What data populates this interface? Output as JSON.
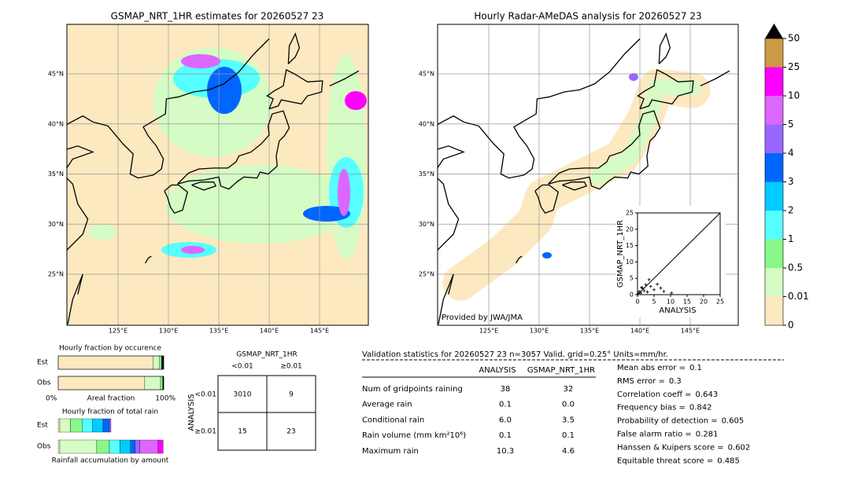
{
  "left_map": {
    "title": "GSMAP_NRT_1HR estimates for 20260527 23",
    "lat_labels": [
      "45°N",
      "40°N",
      "35°N",
      "30°N",
      "25°N"
    ],
    "lon_labels": [
      "125°E",
      "130°E",
      "135°E",
      "140°E",
      "145°E"
    ]
  },
  "right_map": {
    "title": "Hourly Radar-AMeDAS analysis for 20260527 23",
    "lat_labels": [
      "45°N",
      "40°N",
      "35°N",
      "30°N",
      "25°N"
    ],
    "lon_labels": [
      "125°E",
      "130°E",
      "135°E",
      "140°E",
      "145°E"
    ],
    "credit": "Provided by JWA/JMA"
  },
  "scatter": {
    "x_label": "ANALYSIS",
    "y_label": "GSMAP_NRT_1HR",
    "xlim": [
      0,
      25
    ],
    "ylim": [
      0,
      25
    ],
    "xticks": [
      0,
      5,
      10,
      15,
      20,
      25
    ],
    "yticks": [
      0,
      5,
      10,
      15,
      20,
      25
    ],
    "x": [
      0.2,
      0.5,
      1,
      1.5,
      2,
      2.5,
      3,
      4,
      5,
      6,
      7,
      8,
      10.3,
      3.5,
      1.2
    ],
    "y": [
      0.3,
      1,
      0.5,
      2,
      1.2,
      3,
      0.8,
      2.5,
      1.5,
      3.2,
      2,
      1,
      0.5,
      4.6,
      2.2
    ]
  },
  "colorbar": {
    "ticks": [
      0,
      0.01,
      0.5,
      1,
      2,
      3,
      4,
      5,
      10,
      25,
      50
    ],
    "colors": [
      "#fde9c0",
      "#d4fcc4",
      "#88f888",
      "#55ffff",
      "#00ccff",
      "#0066ff",
      "#9966ff",
      "#dd66ff",
      "#ff00ff",
      "#cc9944"
    ],
    "extend_color": "#000000"
  },
  "occurrence": {
    "title": "Hourly fraction by occurence",
    "rows": [
      "Est",
      "Obs"
    ],
    "x_labels": [
      "0%",
      "Areal fraction",
      "100%"
    ],
    "colors": [
      "#fde9c0",
      "#d4fcc4",
      "#88f888",
      "#000000"
    ],
    "segments": [
      [
        0.9,
        0.06,
        0.02,
        0.02
      ],
      [
        0.82,
        0.15,
        0.02,
        0.01
      ]
    ]
  },
  "total": {
    "title": "Hourly fraction of total rain",
    "rows": [
      "Est",
      "Obs"
    ],
    "footer": "Rainfall accumulation by amount",
    "colors": [
      "#fde9c0",
      "#d4fcc4",
      "#88f888",
      "#55ffff",
      "#00ccff",
      "#0066ff",
      "#9966ff",
      "#dd66ff",
      "#ff00ff"
    ],
    "segments": [
      [
        0.015,
        0.1,
        0.11,
        0.1,
        0.1,
        0.06,
        0.015,
        0,
        0
      ],
      [
        0.015,
        0.35,
        0.12,
        0.1,
        0.1,
        0.045,
        0.045,
        0.17,
        0.05
      ]
    ]
  },
  "contingency": {
    "title": "GSMAP_NRT_1HR",
    "cols": [
      "<0.01",
      "≥0.01"
    ],
    "side": "ANALYSIS",
    "rows": [
      "<0.01",
      "≥0.01"
    ],
    "cells": [
      [
        3010,
        9
      ],
      [
        15,
        23
      ]
    ]
  },
  "validation": {
    "header": "Validation statistics for 20260527 23  n=3057 Valid. grid=0.25° Units=mm/hr.",
    "columns": [
      "ANALYSIS",
      "GSMAP_NRT_1HR"
    ],
    "rows": [
      {
        "label": "Num of gridpoints raining",
        "values": [
          "38",
          "32"
        ]
      },
      {
        "label": "Average rain",
        "values": [
          "0.1",
          "0.0"
        ]
      },
      {
        "label": "Conditional rain",
        "values": [
          "6.0",
          "3.5"
        ]
      },
      {
        "label": "Rain volume (mm km²10⁶)",
        "values": [
          "0.1",
          "0.1"
        ]
      },
      {
        "label": "Maximum rain",
        "values": [
          "10.3",
          "4.6"
        ]
      }
    ],
    "scores": [
      {
        "label": "Mean abs error =",
        "value": "0.1"
      },
      {
        "label": "RMS error =",
        "value": "0.3"
      },
      {
        "label": "Correlation coeff =",
        "value": "0.643"
      },
      {
        "label": "Frequency bias =",
        "value": "0.842"
      },
      {
        "label": "Probability of detection =",
        "value": "0.605"
      },
      {
        "label": "False alarm ratio =",
        "value": "0.281"
      },
      {
        "label": "Hanssen & Kuipers score =",
        "value": "0.602"
      },
      {
        "label": "Equitable threat score =",
        "value": "0.485"
      }
    ]
  }
}
